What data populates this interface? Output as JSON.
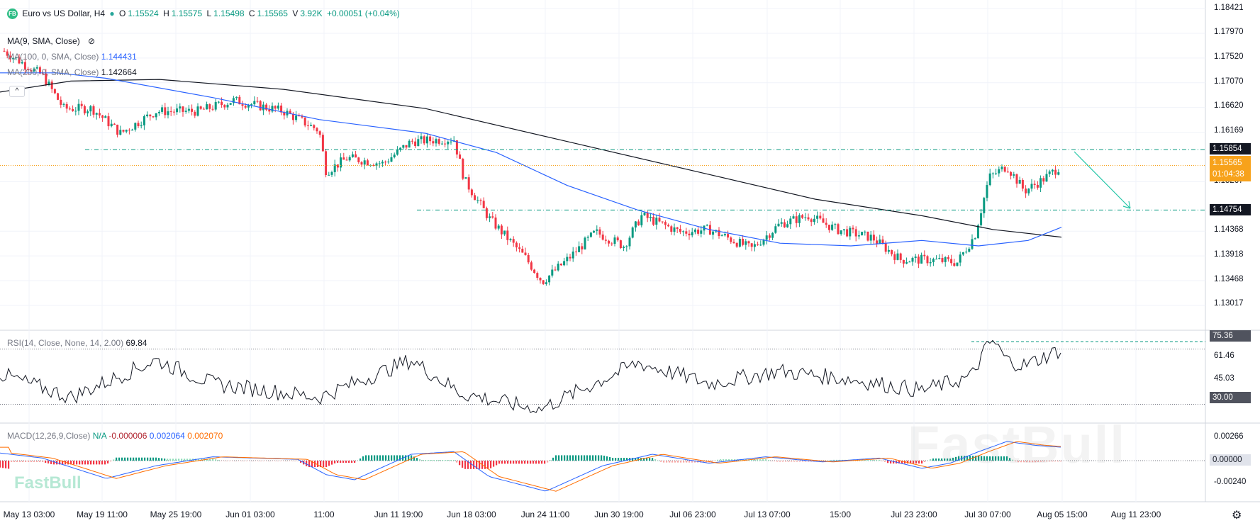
{
  "symbol": {
    "logo_text": "FB",
    "title": "Euro vs US Dollar, H4",
    "status_dot_color": "#26a69a",
    "open_label": "O",
    "open": "1.15524",
    "high_label": "H",
    "high": "1.15575",
    "low_label": "L",
    "low": "1.15498",
    "close_label": "C",
    "close": "1.15565",
    "volume_label": "V",
    "volume": "3.92K",
    "change": "+0.00051 (+0.04%)"
  },
  "indicators": {
    "ma9": {
      "label": "MA(9, SMA, Close)",
      "icon": "eye-off-icon"
    },
    "ma100": {
      "label": "MA(100, 0, SMA, Close)",
      "value": "1.144431",
      "color": "#2962ff"
    },
    "ma200": {
      "label": "MA(200, 0, SMA, Close)",
      "value": "1.142664",
      "color": "#131722"
    },
    "collapse_icon": "chevron-up-icon"
  },
  "price_axis": {
    "ticks": [
      "1.18421",
      "1.17970",
      "1.17520",
      "1.17070",
      "1.16620",
      "1.16169",
      "1.15267",
      "1.14368",
      "1.13918",
      "1.13468",
      "1.13017"
    ],
    "tick_values": [
      1.18421,
      1.1797,
      1.1752,
      1.1707,
      1.1662,
      1.16169,
      1.15267,
      1.14368,
      1.13918,
      1.13468,
      1.13017
    ],
    "resistance_label": "1.15854",
    "resistance_value": 1.15854,
    "support_label": "1.14754",
    "support_value": 1.14754,
    "current_price": "1.15565",
    "current_price_value": 1.15565,
    "countdown": "01:04:38",
    "current_color": "#f7a21b",
    "line_color": "#089981"
  },
  "rsi": {
    "label": "RSI(14, Close, None, 14, 2.00)",
    "value": "69.84",
    "ticks": [
      "75.36",
      "61.46",
      "45.03",
      "30.00"
    ],
    "overbought": 75.36,
    "oversold": 30.0
  },
  "macd": {
    "label": "MACD(12,26,9,Close)",
    "na": "N/A",
    "hist": "-0.000006",
    "macd": "0.002064",
    "signal": "0.002070",
    "ticks": [
      "0.00266",
      "0.00000",
      "-0.00240"
    ],
    "hist_color": "#b22833",
    "macd_color": "#2962ff",
    "signal_color": "#ff6d00"
  },
  "time_axis": {
    "labels": [
      "May 13 03:00",
      "May 19 11:00",
      "May 25 19:00",
      "Jun 01 03:00",
      "11:00",
      "Jun 11 19:00",
      "Jun 18 03:00",
      "Jun 24 11:00",
      "Jun 30 19:00",
      "Jul 06 23:00",
      "Jul 13 07:00",
      "15:00",
      "Jul 23 23:00",
      "Jul 30 07:00",
      "Aug 05 15:00",
      "Aug 11 23:00"
    ],
    "settings_icon": "gear-icon"
  },
  "watermark": {
    "big": "FastBull",
    "small": "FastBull"
  },
  "colors": {
    "up": "#089981",
    "down": "#f23645",
    "grid": "#f0f3fa"
  }
}
